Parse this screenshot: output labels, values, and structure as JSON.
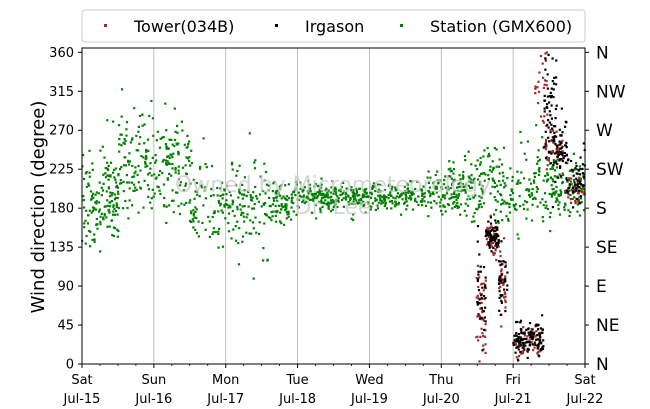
{
  "chart_data": {
    "type": "scatter",
    "title": "",
    "ylabel": "Wind direction (degree)",
    "ylim": [
      0,
      365
    ],
    "yticks": [
      0,
      45,
      90,
      135,
      180,
      225,
      270,
      315,
      360
    ],
    "compass_labels": [
      "N",
      "NE",
      "E",
      "SE",
      "S",
      "SW",
      "W",
      "NW",
      "N"
    ],
    "compass_values": [
      0,
      45,
      90,
      135,
      180,
      225,
      270,
      315,
      360
    ],
    "xlim": [
      "2018-07-15",
      "2018-07-22"
    ],
    "xticks": [
      {
        "day": "Sat",
        "date": "Jul-15"
      },
      {
        "day": "Sun",
        "date": "Jul-16"
      },
      {
        "day": "Mon",
        "date": "Jul-17"
      },
      {
        "day": "Tue",
        "date": "Jul-18"
      },
      {
        "day": "Wed",
        "date": "Jul-19"
      },
      {
        "day": "Thu",
        "date": "Jul-20"
      },
      {
        "day": "Fri",
        "date": "Jul-21"
      },
      {
        "day": "Sat",
        "date": "Jul-22"
      }
    ],
    "grid": "vertical",
    "legend_position": "top",
    "watermark": "Owned by Micrometeorology",
    "watermark_line2": "Dr. Lee",
    "series": [
      {
        "name": "Tower(034B)",
        "color": "#a52a2a",
        "marker": "square",
        "segments": [
          {
            "start": 5.48,
            "end": 5.62,
            "center": 60,
            "spread": 35,
            "n": 45
          },
          {
            "start": 5.62,
            "end": 5.8,
            "center": 145,
            "spread": 12,
            "n": 45
          },
          {
            "start": 5.8,
            "end": 5.9,
            "center": 100,
            "spread": 30,
            "n": 30
          },
          {
            "start": 6.0,
            "end": 6.38,
            "center": 25,
            "spread": 12,
            "n": 60
          },
          {
            "start": 6.3,
            "end": 6.48,
            "center": 320,
            "spread": 30,
            "n": 25
          },
          {
            "start": 6.45,
            "end": 6.7,
            "center": 250,
            "spread": 22,
            "n": 40
          },
          {
            "start": 6.72,
            "end": 7.0,
            "center": 205,
            "spread": 12,
            "n": 30
          }
        ]
      },
      {
        "name": "Irgason",
        "color": "#000000",
        "marker": "square",
        "segments": [
          {
            "start": 5.5,
            "end": 5.62,
            "center": 80,
            "spread": 40,
            "n": 35
          },
          {
            "start": 5.62,
            "end": 5.8,
            "center": 150,
            "spread": 12,
            "n": 60
          },
          {
            "start": 5.8,
            "end": 5.92,
            "center": 100,
            "spread": 30,
            "n": 35
          },
          {
            "start": 6.0,
            "end": 6.42,
            "center": 30,
            "spread": 14,
            "n": 120
          },
          {
            "start": 6.42,
            "end": 6.6,
            "center": 290,
            "spread": 45,
            "n": 60
          },
          {
            "start": 6.55,
            "end": 6.75,
            "center": 250,
            "spread": 28,
            "n": 60
          },
          {
            "start": 6.75,
            "end": 7.0,
            "center": 215,
            "spread": 22,
            "n": 50
          }
        ]
      },
      {
        "name": "Station (GMX600)",
        "color": "#008000",
        "marker": "square",
        "segments": [
          {
            "start": 0.0,
            "end": 0.5,
            "center": 195,
            "spread": 40,
            "n": 150
          },
          {
            "start": 0.5,
            "end": 1.5,
            "center": 230,
            "spread": 42,
            "n": 230
          },
          {
            "start": 1.5,
            "end": 2.6,
            "center": 185,
            "spread": 36,
            "n": 200
          },
          {
            "start": 2.6,
            "end": 3.0,
            "center": 188,
            "spread": 18,
            "n": 90
          },
          {
            "start": 3.0,
            "end": 4.8,
            "center": 193,
            "spread": 11,
            "n": 380
          },
          {
            "start": 4.8,
            "end": 5.4,
            "center": 200,
            "spread": 22,
            "n": 140
          },
          {
            "start": 5.4,
            "end": 6.5,
            "center": 205,
            "spread": 32,
            "n": 210
          },
          {
            "start": 6.5,
            "end": 7.0,
            "center": 205,
            "spread": 22,
            "n": 120
          }
        ]
      }
    ]
  }
}
